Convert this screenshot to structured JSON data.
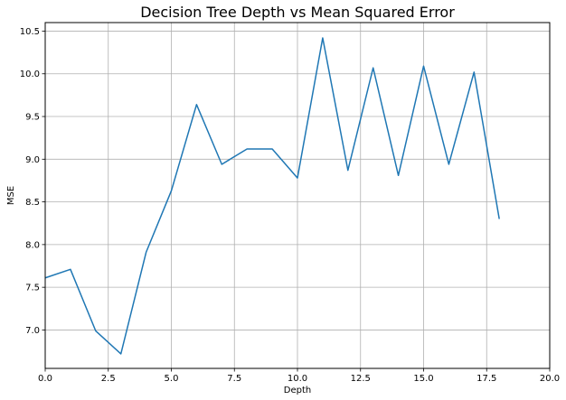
{
  "chart_data": {
    "type": "line",
    "title": "Decision Tree Depth vs Mean Squared Error",
    "xlabel": "Depth",
    "ylabel": "MSE",
    "xlim": [
      0.0,
      20.0
    ],
    "ylim": [
      6.55,
      10.6
    ],
    "x_ticks": [
      0.0,
      2.5,
      5.0,
      7.5,
      10.0,
      12.5,
      15.0,
      17.5,
      20.0
    ],
    "x_tick_labels": [
      "0.0",
      "2.5",
      "5.0",
      "7.5",
      "10.0",
      "12.5",
      "15.0",
      "17.5",
      "20.0"
    ],
    "y_ticks": [
      7.0,
      7.5,
      8.0,
      8.5,
      9.0,
      9.5,
      10.0,
      10.5
    ],
    "y_tick_labels": [
      "7.0",
      "7.5",
      "8.0",
      "8.5",
      "9.0",
      "9.5",
      "10.0",
      "10.5"
    ],
    "grid": true,
    "line_color": "#1f77b4",
    "series": [
      {
        "x": [
          0,
          1,
          2,
          3,
          4,
          5,
          6,
          7,
          8,
          9,
          10,
          11,
          12,
          13,
          14,
          15,
          16,
          17,
          18
        ],
        "values": [
          7.61,
          7.71,
          6.99,
          6.72,
          7.91,
          8.63,
          9.64,
          8.94,
          9.12,
          9.12,
          8.78,
          10.42,
          8.87,
          10.07,
          8.81,
          10.09,
          8.94,
          10.02,
          8.3
        ]
      }
    ]
  }
}
